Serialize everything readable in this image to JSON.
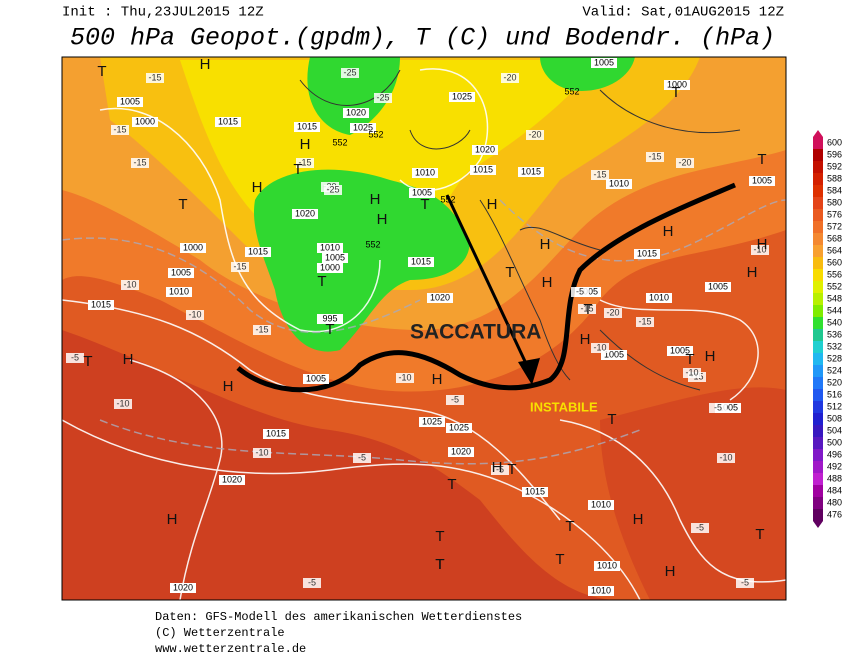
{
  "header": {
    "init": "Init : Thu,23JUL2015 12Z",
    "valid": "Valid: Sat,01AUG2015 12Z",
    "title": "500 hPa Geopot.(gpdm), T (C) und Bodendr. (hPa)"
  },
  "annotations": {
    "trough": "SACCATURA",
    "unstable": "INSTABILE"
  },
  "map_labels": {
    "pressure": [
      "1005",
      "1000",
      "1015",
      "1020",
      "1015",
      "1025",
      "1025",
      "1020",
      "1010",
      "1005",
      "1015",
      "1015",
      "1010",
      "1005",
      "1000",
      "1005",
      "1000",
      "1005",
      "1010",
      "1015",
      "1015",
      "1020",
      "1010",
      "1005",
      "1000",
      "995",
      "1015",
      "1020",
      "1015",
      "1005",
      "1010",
      "1005",
      "1005",
      "1005",
      "1005",
      "1015",
      "1020",
      "1025",
      "1025",
      "1020",
      "1015",
      "1010",
      "1010",
      "1010",
      "1020",
      "1005"
    ],
    "temperature": [
      "-15",
      "-15",
      "-15",
      "-25",
      "-25",
      "-15",
      "-20",
      "-25",
      "-20",
      "-15",
      "-20",
      "-15",
      "-20",
      "-15",
      "-10",
      "-15",
      "-10",
      "-10",
      "-15",
      "-20",
      "-15",
      "-10",
      "-15",
      "-10",
      "-10",
      "-5",
      "-10",
      "-5",
      "-5",
      "-10",
      "-5",
      "-5",
      "-5",
      "-5",
      "-10",
      "-5",
      "-5"
    ],
    "geopotential": [
      "552",
      "552",
      "552",
      "552",
      "552"
    ],
    "centers": [
      "T",
      "H",
      "H",
      "T",
      "H",
      "H",
      "T",
      "T",
      "H",
      "T",
      "H",
      "T",
      "H",
      "T",
      "H",
      "H",
      "H",
      "T",
      "T",
      "H",
      "H",
      "T",
      "H",
      "T",
      "H",
      "H",
      "H",
      "T",
      "T",
      "H",
      "H",
      "T",
      "T",
      "T",
      "T",
      "H",
      "T",
      "T",
      "H",
      "T",
      "T"
    ]
  },
  "colorbar": {
    "levels": [
      600,
      596,
      592,
      588,
      584,
      580,
      576,
      572,
      568,
      564,
      560,
      556,
      552,
      548,
      544,
      540,
      536,
      532,
      528,
      524,
      520,
      516,
      512,
      508,
      504,
      500,
      496,
      492,
      488,
      484,
      480,
      476
    ],
    "colors": [
      "#d0105a",
      "#b00000",
      "#c41000",
      "#d42000",
      "#de3000",
      "#e44418",
      "#ea5a20",
      "#f07028",
      "#f48830",
      "#f8a030",
      "#f8bc10",
      "#f8dc00",
      "#e0f000",
      "#b8f000",
      "#80ec00",
      "#30e030",
      "#20c890",
      "#20d0d0",
      "#20b8f0",
      "#2098f8",
      "#2078f8",
      "#2058f0",
      "#2038e0",
      "#2020d0",
      "#3818c0",
      "#5818c0",
      "#8018c8",
      "#a018c8",
      "#c020d0",
      "#a000a0",
      "#800080",
      "#600060"
    ]
  },
  "footer": [
    "Daten: GFS-Modell des amerikanischen Wetterdienstes",
    "(C) Wetterzentrale",
    "www.wetterzentrale.de"
  ]
}
